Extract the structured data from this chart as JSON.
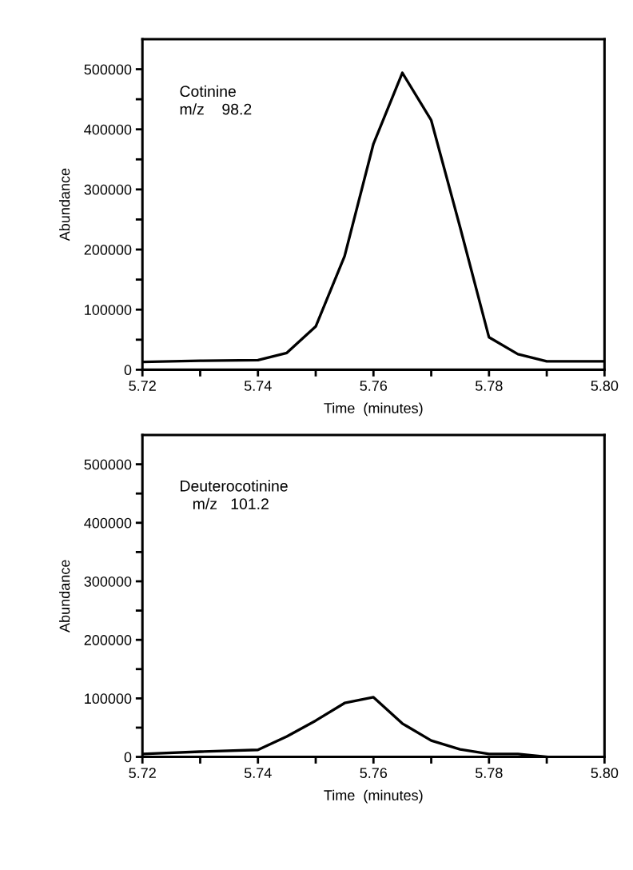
{
  "chart_data": [
    {
      "type": "line",
      "xlabel": "Time  (minutes)",
      "ylabel": "Abundance",
      "annotations": [
        "Cotinine\nm/z    98.2"
      ],
      "x": [
        5.72,
        5.73,
        5.74,
        5.745,
        5.75,
        5.755,
        5.76,
        5.765,
        5.77,
        5.775,
        5.78,
        5.785,
        5.79,
        5.8
      ],
      "series": [
        {
          "color": "#000000",
          "values": [
            13000,
            15000,
            16000,
            28000,
            72000,
            189000,
            376000,
            494000,
            415000,
            237000,
            54000,
            26000,
            14000,
            14000
          ]
        }
      ],
      "xlim": [
        5.72,
        5.8
      ],
      "ylim": [
        0,
        550000
      ],
      "xticks": [
        5.72,
        {
          "value": 5.73,
          "label": null
        },
        5.74,
        {
          "value": 5.75,
          "label": null
        },
        5.76,
        {
          "value": 5.77,
          "label": null
        },
        5.78,
        {
          "value": 5.79,
          "label": null
        },
        {
          "value": 5.8,
          "label": "5.80"
        }
      ],
      "yticks": [
        0,
        {
          "value": 50000,
          "label": null
        },
        100000,
        {
          "value": 150000,
          "label": null
        },
        200000,
        {
          "value": 250000,
          "label": null
        },
        300000,
        {
          "value": 350000,
          "label": null
        },
        400000,
        {
          "value": 450000,
          "label": null
        },
        500000
      ],
      "grid": false,
      "marker": "none",
      "line_style": "solid"
    },
    {
      "type": "line",
      "xlabel": "Time  (minutes)",
      "ylabel": "Abundance",
      "annotations": [
        "Deuterocotinine\n   m/z   101.2"
      ],
      "x": [
        5.72,
        5.73,
        5.74,
        5.745,
        5.75,
        5.755,
        5.76,
        5.765,
        5.77,
        5.775,
        5.78,
        5.785,
        5.79
      ],
      "series": [
        {
          "color": "#000000",
          "values": [
            5000,
            9000,
            12000,
            35000,
            62000,
            92000,
            102000,
            57000,
            28000,
            13000,
            5000,
            5000,
            0
          ]
        }
      ],
      "xlim": [
        5.72,
        5.8
      ],
      "ylim": [
        0,
        550000
      ],
      "xticks": [
        5.72,
        {
          "value": 5.73,
          "label": null
        },
        5.74,
        {
          "value": 5.75,
          "label": null
        },
        5.76,
        {
          "value": 5.77,
          "label": null
        },
        5.78,
        {
          "value": 5.79,
          "label": null
        },
        {
          "value": 5.8,
          "label": "5.80"
        }
      ],
      "yticks": [
        0,
        {
          "value": 50000,
          "label": null
        },
        100000,
        {
          "value": 150000,
          "label": null
        },
        200000,
        {
          "value": 250000,
          "label": null
        },
        300000,
        {
          "value": 350000,
          "label": null
        },
        400000,
        {
          "value": 450000,
          "label": null
        },
        500000
      ],
      "grid": false,
      "marker": "none",
      "line_style": "solid"
    }
  ]
}
